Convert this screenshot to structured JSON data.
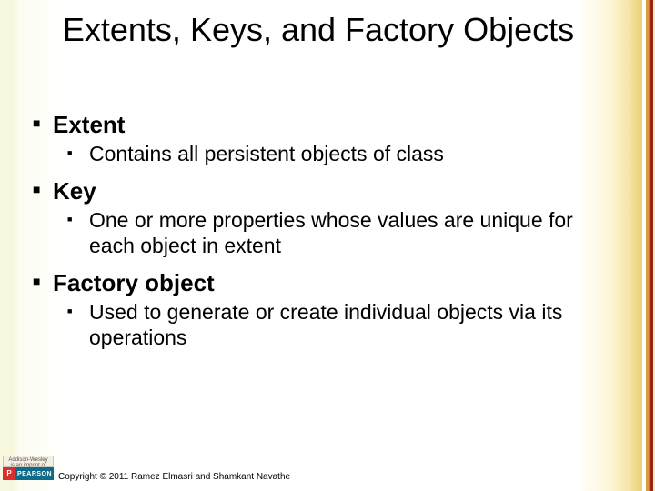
{
  "title": "Extents, Keys, and Factory Objects",
  "sections": [
    {
      "heading": "Extent",
      "sub": "Contains all persistent objects of class"
    },
    {
      "heading": "Key",
      "sub": "One or more properties whose values are unique for each object in extent"
    },
    {
      "heading": "Factory object",
      "sub": "Used to generate or create individual objects via its operations"
    }
  ],
  "logo": {
    "top_line1": "Addison-Wesley",
    "top_line2": "is an imprint of",
    "badge": "P",
    "brand": "PEARSON"
  },
  "copyright": "Copyright © 2011 Ramez Elmasri and Shamkant Navathe"
}
